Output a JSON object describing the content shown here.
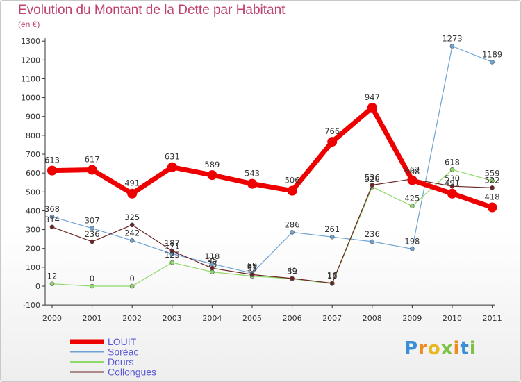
{
  "header": {
    "title": "Evolution du Montant de la Dette par Habitant",
    "subtitle": "(en €)"
  },
  "logo": {
    "text": "Proxiti"
  },
  "chart_data": {
    "type": "line",
    "x": [
      "2000",
      "2001",
      "2002",
      "2003",
      "2004",
      "2005",
      "2006",
      "2007",
      "2008",
      "2009",
      "2010",
      "2011"
    ],
    "ylim": [
      -100,
      1300
    ],
    "yticks": [
      -100,
      0,
      100,
      200,
      300,
      400,
      500,
      600,
      700,
      800,
      900,
      1000,
      1100,
      1200,
      1300
    ],
    "grid": false,
    "legend_position": "bottom-left",
    "series": [
      {
        "name": "Soréac",
        "color": "#6fa3d4",
        "width": 1.2,
        "values": [
          368,
          307,
          242,
          171,
          118,
          69,
          286,
          261,
          236,
          198,
          1273,
          1189
        ]
      },
      {
        "name": "Dours",
        "color": "#8fd86a",
        "width": 1.2,
        "values": [
          12,
          0,
          0,
          125,
          75,
          53,
          39,
          13,
          526,
          425,
          618,
          559
        ]
      },
      {
        "name": "Collongues",
        "color": "#6b2424",
        "width": 1.2,
        "values": [
          314,
          236,
          325,
          187,
          95,
          61,
          41,
          16,
          536,
          568,
          530,
          522
        ]
      },
      {
        "name": "LOUIT",
        "color": "#ee0000",
        "width": 7,
        "values": [
          613,
          617,
          491,
          631,
          589,
          543,
          506,
          766,
          947,
          562,
          491,
          418
        ]
      }
    ],
    "legend_order": [
      "LOUIT",
      "Soréac",
      "Dours",
      "Collongues"
    ]
  }
}
